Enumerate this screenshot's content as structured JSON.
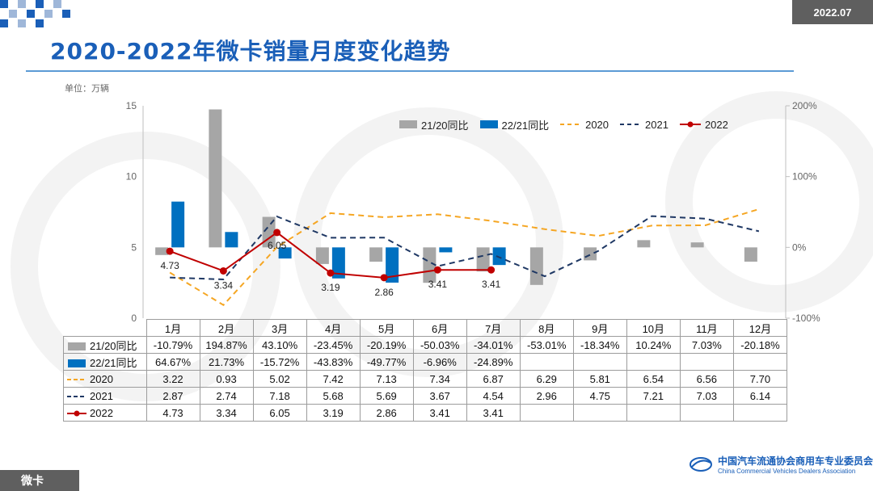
{
  "header": {
    "date_badge": "2022.07",
    "title": "2020-2022年微卡销量月度变化趋势",
    "unit": "单位：万辆"
  },
  "footer": {
    "tab_label": "微卡",
    "org_name_cn": "中国汽车流通协会商用车专业委员会",
    "org_name_en": "China Commercial Vehicles Dealers Association"
  },
  "colors": {
    "yoy_21_20": "#a6a6a6",
    "yoy_22_21": "#0070c0",
    "y2020": "#f5a623",
    "y2021": "#1f3864",
    "y2022": "#c00000",
    "title": "#1a5fb8"
  },
  "chart_data": {
    "type": "bar+line",
    "categories": [
      "1月",
      "2月",
      "3月",
      "4月",
      "5月",
      "6月",
      "7月",
      "8月",
      "9月",
      "10月",
      "11月",
      "12月"
    ],
    "y_left": {
      "ylim": [
        0,
        15
      ],
      "ticks": [
        "0",
        "5",
        "10",
        "15"
      ]
    },
    "y_right": {
      "ylim": [
        -100,
        200
      ],
      "ticks": [
        "-100%",
        "0%",
        "100%",
        "200%"
      ]
    },
    "grid": false,
    "legend_position": "top-right",
    "series": [
      {
        "name": "21/20同比",
        "kind": "bar",
        "axis": "right",
        "values": [
          -10.79,
          194.87,
          43.1,
          -23.45,
          -20.19,
          -50.03,
          -34.01,
          -53.01,
          -18.34,
          10.24,
          7.03,
          -20.18
        ],
        "labels": [
          "-10.79%",
          "194.87%",
          "43.10%",
          "-23.45%",
          "-20.19%",
          "-50.03%",
          "-34.01%",
          "-53.01%",
          "-18.34%",
          "10.24%",
          "7.03%",
          "-20.18%"
        ]
      },
      {
        "name": "22/21同比",
        "kind": "bar",
        "axis": "right",
        "values": [
          64.67,
          21.73,
          -15.72,
          -43.83,
          -49.77,
          -6.96,
          -24.89,
          null,
          null,
          null,
          null,
          null
        ],
        "labels": [
          "64.67%",
          "21.73%",
          "-15.72%",
          "-43.83%",
          "-49.77%",
          "-6.96%",
          "-24.89%",
          "",
          "",
          "",
          "",
          ""
        ]
      },
      {
        "name": "2020",
        "kind": "line",
        "style": "dashed",
        "axis": "left",
        "values": [
          3.22,
          0.93,
          5.02,
          7.42,
          7.13,
          7.34,
          6.87,
          6.29,
          5.81,
          6.54,
          6.56,
          7.7
        ],
        "labels": [
          "3.22",
          "0.93",
          "5.02",
          "7.42",
          "7.13",
          "7.34",
          "6.87",
          "6.29",
          "5.81",
          "6.54",
          "6.56",
          "7.70"
        ]
      },
      {
        "name": "2021",
        "kind": "line",
        "style": "dashed",
        "axis": "left",
        "values": [
          2.87,
          2.74,
          7.18,
          5.68,
          5.69,
          3.67,
          4.54,
          2.96,
          4.75,
          7.21,
          7.03,
          6.14
        ],
        "labels": [
          "2.87",
          "2.74",
          "7.18",
          "5.68",
          "5.69",
          "3.67",
          "4.54",
          "2.96",
          "4.75",
          "7.21",
          "7.03",
          "6.14"
        ]
      },
      {
        "name": "2022",
        "kind": "line",
        "style": "solid-marker",
        "axis": "left",
        "values": [
          4.73,
          3.34,
          6.05,
          3.19,
          2.86,
          3.41,
          3.41,
          null,
          null,
          null,
          null,
          null
        ],
        "labels": [
          "4.73",
          "3.34",
          "6.05",
          "3.19",
          "2.86",
          "3.41",
          "3.41",
          "",
          "",
          "",
          "",
          ""
        ]
      }
    ]
  }
}
